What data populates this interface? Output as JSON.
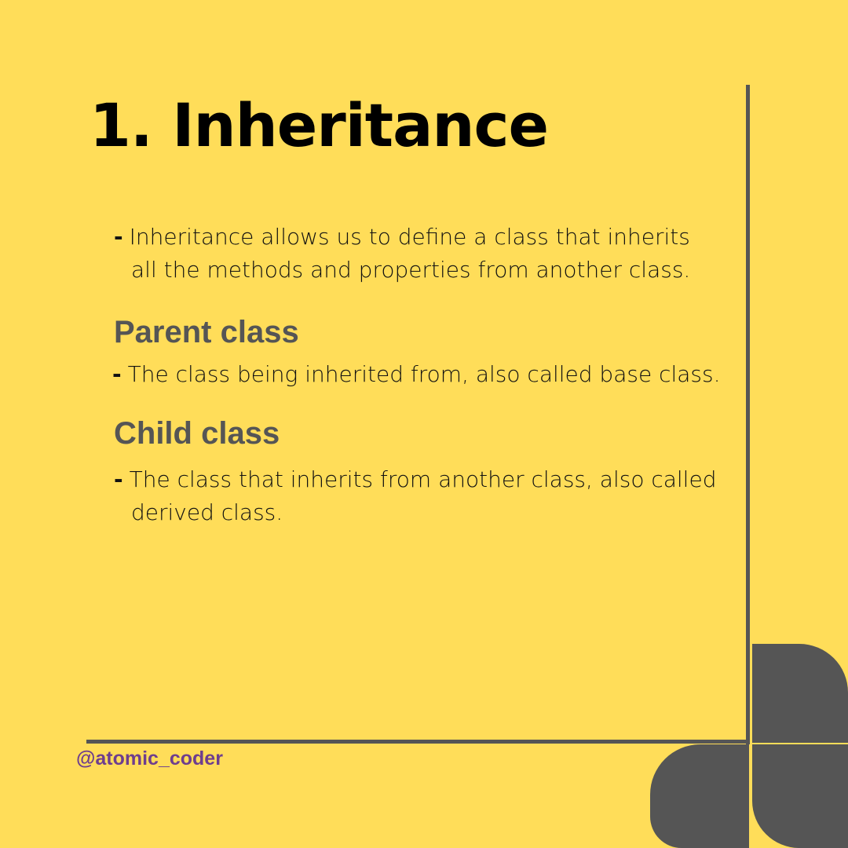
{
  "title": "1. Inheritance",
  "intro": {
    "dash": "-",
    "line1": "Inheritance allows us to define a class that inherits",
    "line2": "all the methods and properties from another class."
  },
  "parent": {
    "heading": "Parent class",
    "dash": "-",
    "line1": "The class being inherited from, also called base class."
  },
  "child": {
    "heading": "Child class",
    "dash": "-",
    "line1": "The class that inherits from another class, also called",
    "line2": "derived class."
  },
  "handle": "@atomic_coder",
  "colors": {
    "background": "#FFDD59",
    "accent": "#555555",
    "handle": "#6E3E8E"
  },
  "decoration": "four-petal-flower-icon"
}
